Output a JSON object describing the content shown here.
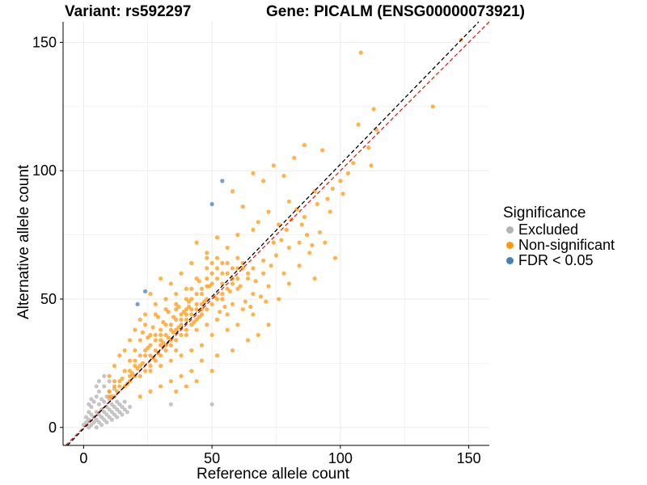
{
  "header": {
    "variant_title": "Variant: rs592297",
    "gene_title": "Gene: PICALM (ENSG00000073921)"
  },
  "chart_data": {
    "type": "scatter",
    "xlabel": "Reference allele count",
    "ylabel": "Alternative allele count",
    "xlim": [
      -8,
      158
    ],
    "ylim": [
      -7,
      158
    ],
    "xticks": [
      0,
      50,
      100,
      150
    ],
    "yticks": [
      0,
      50,
      100,
      150
    ],
    "grid": true,
    "reference_lines": [
      {
        "kind": "identity",
        "color": "#e41a1c",
        "style": "dashed"
      },
      {
        "kind": "fit",
        "color": "#000000",
        "style": "dashed"
      }
    ],
    "legend": {
      "title": "Significance",
      "position": "right",
      "entries": [
        {
          "label": "Excluded",
          "color": "#b3b3b3"
        },
        {
          "label": "Non-significant",
          "color": "#ff9a0e"
        },
        {
          "label": "FDR < 0.05",
          "color": "#4a7fb5"
        }
      ]
    },
    "series": [
      {
        "name": "Excluded",
        "color": "#b3b3b3",
        "points": [
          [
            0,
            1
          ],
          [
            1,
            2
          ],
          [
            1,
            4
          ],
          [
            2,
            0
          ],
          [
            2,
            3
          ],
          [
            2,
            6
          ],
          [
            3,
            1
          ],
          [
            3,
            5
          ],
          [
            3,
            8
          ],
          [
            4,
            2
          ],
          [
            4,
            4
          ],
          [
            4,
            10
          ],
          [
            5,
            0
          ],
          [
            5,
            3
          ],
          [
            5,
            6
          ],
          [
            5,
            12
          ],
          [
            6,
            2
          ],
          [
            6,
            5
          ],
          [
            6,
            9
          ],
          [
            6,
            14
          ],
          [
            7,
            1
          ],
          [
            7,
            4
          ],
          [
            7,
            7
          ],
          [
            7,
            11
          ],
          [
            8,
            3
          ],
          [
            8,
            6
          ],
          [
            8,
            10
          ],
          [
            8,
            16
          ],
          [
            9,
            2
          ],
          [
            9,
            5
          ],
          [
            9,
            8
          ],
          [
            9,
            12
          ],
          [
            10,
            4
          ],
          [
            10,
            7
          ],
          [
            10,
            11
          ],
          [
            10,
            14
          ],
          [
            11,
            3
          ],
          [
            11,
            6
          ],
          [
            11,
            9
          ],
          [
            12,
            5
          ],
          [
            12,
            8
          ],
          [
            12,
            12
          ],
          [
            13,
            4
          ],
          [
            13,
            7
          ],
          [
            13,
            10
          ],
          [
            14,
            6
          ],
          [
            14,
            9
          ],
          [
            15,
            5
          ],
          [
            15,
            8
          ],
          [
            16,
            7
          ],
          [
            16,
            10
          ],
          [
            17,
            6
          ],
          [
            18,
            8
          ],
          [
            8,
            20
          ],
          [
            6,
            18
          ],
          [
            3,
            11
          ],
          [
            10,
            18
          ],
          [
            12,
            15
          ],
          [
            2,
            9
          ],
          [
            5,
            16
          ],
          [
            34,
            9
          ],
          [
            50,
            9
          ]
        ]
      },
      {
        "name": "Non-significant",
        "color": "#ff9a0e",
        "points": [
          [
            147,
            151
          ],
          [
            108,
            146
          ],
          [
            136,
            125
          ],
          [
            113,
            124
          ],
          [
            107,
            118
          ],
          [
            112,
            102
          ],
          [
            114,
            116
          ],
          [
            96,
            84
          ],
          [
            86,
            110
          ],
          [
            93,
            108
          ],
          [
            100,
            96
          ],
          [
            74,
            102
          ],
          [
            82,
            105
          ],
          [
            78,
            98
          ],
          [
            90,
            92
          ],
          [
            70,
            96
          ],
          [
            66,
            99
          ],
          [
            62,
            86
          ],
          [
            58,
            92
          ],
          [
            80,
            88
          ],
          [
            72,
            84
          ],
          [
            86,
            82
          ],
          [
            68,
            80
          ],
          [
            76,
            79
          ],
          [
            92,
            76
          ],
          [
            60,
            75
          ],
          [
            66,
            77
          ],
          [
            52,
            74
          ],
          [
            74,
            72
          ],
          [
            80,
            70
          ],
          [
            88,
            68
          ],
          [
            70,
            65
          ],
          [
            56,
            70
          ],
          [
            48,
            68
          ],
          [
            44,
            72
          ],
          [
            42,
            64
          ],
          [
            62,
            62
          ],
          [
            78,
            60
          ],
          [
            84,
            63
          ],
          [
            90,
            58
          ],
          [
            58,
            58
          ],
          [
            50,
            60
          ],
          [
            38,
            60
          ],
          [
            34,
            56
          ],
          [
            30,
            58
          ],
          [
            26,
            52
          ],
          [
            72,
            55
          ],
          [
            66,
            52
          ],
          [
            60,
            54
          ],
          [
            54,
            50
          ],
          [
            46,
            52
          ],
          [
            40,
            50
          ],
          [
            36,
            48
          ],
          [
            32,
            46
          ],
          [
            28,
            44
          ],
          [
            24,
            40
          ],
          [
            20,
            38
          ],
          [
            18,
            34
          ],
          [
            16,
            30
          ],
          [
            14,
            28
          ],
          [
            12,
            24
          ],
          [
            10,
            20
          ],
          [
            62,
            46
          ],
          [
            56,
            44
          ],
          [
            52,
            42
          ],
          [
            48,
            40
          ],
          [
            44,
            38
          ],
          [
            40,
            36
          ],
          [
            36,
            34
          ],
          [
            32,
            32
          ],
          [
            28,
            30
          ],
          [
            24,
            28
          ],
          [
            20,
            26
          ],
          [
            16,
            22
          ],
          [
            14,
            18
          ],
          [
            12,
            16
          ],
          [
            10,
            14
          ],
          [
            66,
            44
          ],
          [
            60,
            40
          ],
          [
            56,
            38
          ],
          [
            50,
            36
          ],
          [
            46,
            32
          ],
          [
            42,
            30
          ],
          [
            38,
            28
          ],
          [
            34,
            26
          ],
          [
            30,
            24
          ],
          [
            26,
            22
          ],
          [
            22,
            20
          ],
          [
            18,
            18
          ],
          [
            58,
            30
          ],
          [
            52,
            28
          ],
          [
            46,
            26
          ],
          [
            42,
            22
          ],
          [
            38,
            20
          ],
          [
            34,
            18
          ],
          [
            30,
            16
          ],
          [
            26,
            14
          ],
          [
            22,
            12
          ],
          [
            50,
            22
          ],
          [
            44,
            18
          ],
          [
            40,
            16
          ],
          [
            36,
            14
          ],
          [
            72,
            40
          ],
          [
            68,
            36
          ],
          [
            64,
            34
          ],
          [
            58,
            48
          ],
          [
            54,
            56
          ],
          [
            46,
            46
          ],
          [
            42,
            44
          ],
          [
            38,
            42
          ],
          [
            34,
            40
          ],
          [
            30,
            38
          ],
          [
            26,
            36
          ],
          [
            22,
            34
          ],
          [
            20,
            30
          ],
          [
            18,
            26
          ],
          [
            48,
            55
          ],
          [
            44,
            58
          ],
          [
            40,
            54
          ],
          [
            36,
            52
          ],
          [
            32,
            50
          ],
          [
            28,
            48
          ],
          [
            24,
            44
          ],
          [
            22,
            42
          ],
          [
            70,
            60
          ],
          [
            64,
            58
          ],
          [
            60,
            62
          ],
          [
            56,
            64
          ],
          [
            52,
            66
          ],
          [
            48,
            62
          ],
          [
            76,
            50
          ],
          [
            80,
            56
          ],
          [
            84,
            72
          ],
          [
            94,
            72
          ],
          [
            98,
            66
          ],
          [
            40,
            44
          ],
          [
            35,
            37
          ],
          [
            31,
            33
          ],
          [
            27,
            27
          ],
          [
            23,
            25
          ],
          [
            19,
            21
          ],
          [
            15,
            19
          ],
          [
            13,
            14
          ],
          [
            11,
            12
          ],
          [
            45,
            43
          ],
          [
            43,
            41
          ],
          [
            37,
            39
          ],
          [
            33,
            35
          ],
          [
            29,
            29
          ],
          [
            25,
            31
          ],
          [
            21,
            23
          ],
          [
            17,
            17
          ],
          [
            55,
            47
          ],
          [
            53,
            45
          ],
          [
            47,
            49
          ],
          [
            41,
            47
          ],
          [
            39,
            45
          ],
          [
            35,
            43
          ],
          [
            31,
            41
          ],
          [
            27,
            39
          ],
          [
            23,
            37
          ],
          [
            57,
            53
          ],
          [
            51,
            51
          ],
          [
            49,
            55
          ],
          [
            45,
            57
          ],
          [
            41,
            49
          ],
          [
            37,
            47
          ],
          [
            33,
            45
          ],
          [
            29,
            43
          ],
          [
            25,
            35
          ],
          [
            61,
            55
          ],
          [
            63,
            49
          ],
          [
            65,
            47
          ],
          [
            67,
            57
          ],
          [
            69,
            51
          ],
          [
            71,
            49
          ],
          [
            73,
            63
          ],
          [
            75,
            67
          ],
          [
            77,
            73
          ],
          [
            79,
            77
          ],
          [
            81,
            81
          ],
          [
            83,
            85
          ],
          [
            85,
            79
          ],
          [
            87,
            75
          ],
          [
            89,
            71
          ],
          [
            91,
            87
          ],
          [
            95,
            89
          ],
          [
            97,
            93
          ],
          [
            101,
            91
          ],
          [
            103,
            99
          ],
          [
            105,
            103
          ],
          [
            111,
            109
          ],
          [
            30,
            28
          ],
          [
            28,
            26
          ],
          [
            26,
            24
          ],
          [
            24,
            22
          ],
          [
            22,
            24
          ],
          [
            20,
            20
          ],
          [
            18,
            22
          ],
          [
            16,
            16
          ],
          [
            14,
            16
          ],
          [
            12,
            18
          ],
          [
            10,
            12
          ],
          [
            36,
            30
          ],
          [
            34,
            32
          ],
          [
            32,
            36
          ],
          [
            30,
            34
          ],
          [
            28,
            36
          ],
          [
            26,
            32
          ],
          [
            24,
            30
          ],
          [
            22,
            28
          ],
          [
            20,
            24
          ],
          [
            18,
            20
          ],
          [
            44,
            42
          ],
          [
            42,
            40
          ],
          [
            40,
            38
          ],
          [
            38,
            36
          ],
          [
            36,
            38
          ],
          [
            34,
            34
          ],
          [
            32,
            30
          ],
          [
            30,
            32
          ],
          [
            28,
            34
          ],
          [
            26,
            28
          ],
          [
            48,
            46
          ],
          [
            46,
            44
          ],
          [
            44,
            48
          ],
          [
            42,
            46
          ],
          [
            40,
            42
          ],
          [
            38,
            40
          ],
          [
            36,
            42
          ],
          [
            34,
            38
          ],
          [
            32,
            40
          ],
          [
            30,
            36
          ],
          [
            54,
            52
          ],
          [
            52,
            50
          ],
          [
            50,
            48
          ],
          [
            48,
            50
          ],
          [
            46,
            48
          ],
          [
            44,
            46
          ],
          [
            42,
            50
          ],
          [
            40,
            46
          ],
          [
            38,
            44
          ],
          [
            36,
            46
          ],
          [
            60,
            58
          ],
          [
            58,
            56
          ],
          [
            56,
            54
          ],
          [
            54,
            60
          ],
          [
            52,
            58
          ],
          [
            50,
            56
          ],
          [
            48,
            58
          ],
          [
            46,
            54
          ],
          [
            44,
            52
          ],
          [
            42,
            54
          ],
          [
            66,
            62
          ],
          [
            64,
            60
          ],
          [
            62,
            64
          ],
          [
            60,
            66
          ],
          [
            58,
            62
          ],
          [
            56,
            60
          ],
          [
            54,
            64
          ],
          [
            52,
            62
          ],
          [
            50,
            64
          ],
          [
            48,
            66
          ]
        ]
      },
      {
        "name": "FDR < 0.05",
        "color": "#4a7fb5",
        "points": [
          [
            54,
            96
          ],
          [
            50,
            87
          ],
          [
            24,
            53
          ],
          [
            21,
            48
          ]
        ]
      }
    ]
  }
}
